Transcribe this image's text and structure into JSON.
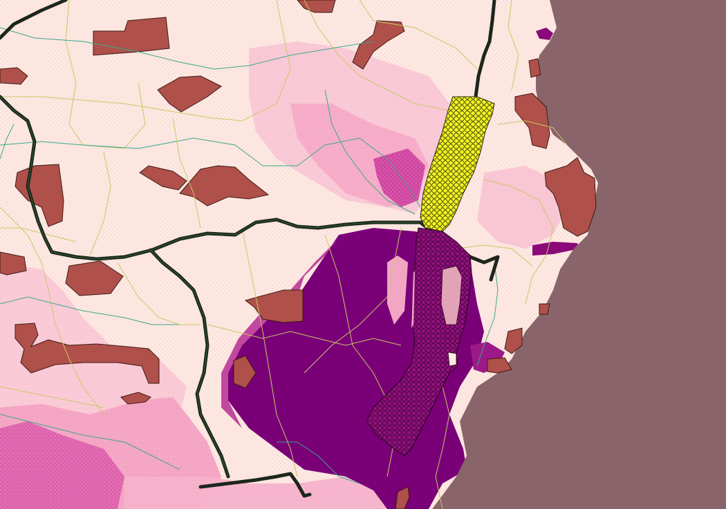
{
  "map": {
    "colors": {
      "land": "#fdebe2",
      "sea": "#8a646b",
      "density_light": "#f9c9d6",
      "density_mid": "#f090b8",
      "density_high": "#e0409a",
      "density_max": "#7a0078",
      "protected_area": "#b0504a",
      "roads_major": "#1c261c",
      "roads_minor_yellow": "#c8c864",
      "roads_minor_teal": "#3aa88a",
      "grid_north": "#f5f520",
      "grid_south": "#8a0a7a"
    },
    "layers": [
      "sea-layer",
      "density-layer",
      "protected-areas-layer",
      "minor-roads-layer",
      "major-roads-layer",
      "hex-grid-north",
      "hex-grid-south"
    ]
  }
}
